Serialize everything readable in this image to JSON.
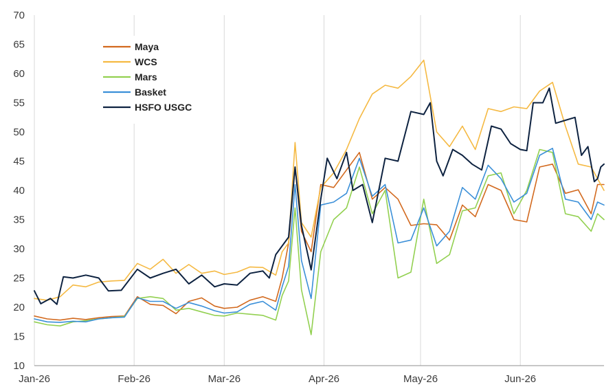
{
  "chart_data": {
    "type": "line",
    "ylim": [
      10,
      70
    ],
    "yticks": [
      10,
      15,
      20,
      25,
      30,
      35,
      40,
      45,
      50,
      55,
      60,
      65,
      70
    ],
    "xlim": [
      "2026-01-01",
      "2026-06-27"
    ],
    "xticks": [
      {
        "date": "2026-01-01",
        "label": "Jan-26"
      },
      {
        "date": "2026-02-01",
        "label": "Feb-26"
      },
      {
        "date": "2026-03-01",
        "label": "Mar-26"
      },
      {
        "date": "2026-04-01",
        "label": "Apr-26"
      },
      {
        "date": "2026-05-01",
        "label": "May-26"
      },
      {
        "date": "2026-06-01",
        "label": "Jun-26"
      }
    ],
    "grid": "vertical",
    "legend_position": "top-left",
    "series": [
      {
        "name": "Maya",
        "color": "#d2691e",
        "points": [
          [
            "2026-01-01",
            18.5
          ],
          [
            "2026-01-05",
            18.0
          ],
          [
            "2026-01-09",
            17.8
          ],
          [
            "2026-01-13",
            18.1
          ],
          [
            "2026-01-17",
            17.9
          ],
          [
            "2026-01-21",
            18.2
          ],
          [
            "2026-01-25",
            18.4
          ],
          [
            "2026-01-29",
            18.5
          ],
          [
            "2026-02-02",
            21.8
          ],
          [
            "2026-02-06",
            20.5
          ],
          [
            "2026-02-10",
            20.3
          ],
          [
            "2026-02-14",
            18.9
          ],
          [
            "2026-02-18",
            21.0
          ],
          [
            "2026-02-22",
            21.6
          ],
          [
            "2026-02-26",
            20.2
          ],
          [
            "2026-03-01",
            19.8
          ],
          [
            "2026-03-05",
            20.0
          ],
          [
            "2026-03-09",
            21.2
          ],
          [
            "2026-03-13",
            21.8
          ],
          [
            "2026-03-17",
            21.0
          ],
          [
            "2026-03-19",
            25.0
          ],
          [
            "2026-03-21",
            31.0
          ],
          [
            "2026-03-23",
            44.0
          ],
          [
            "2026-03-25",
            33.0
          ],
          [
            "2026-03-28",
            29.5
          ],
          [
            "2026-03-31",
            41.0
          ],
          [
            "2026-04-04",
            40.5
          ],
          [
            "2026-04-08",
            43.5
          ],
          [
            "2026-04-12",
            46.5
          ],
          [
            "2026-04-16",
            38.5
          ],
          [
            "2026-04-20",
            40.5
          ],
          [
            "2026-04-24",
            38.5
          ],
          [
            "2026-04-28",
            34.0
          ],
          [
            "2026-05-02",
            34.3
          ],
          [
            "2026-05-06",
            34.1
          ],
          [
            "2026-05-10",
            31.5
          ],
          [
            "2026-05-14",
            37.5
          ],
          [
            "2026-05-18",
            35.5
          ],
          [
            "2026-05-22",
            41.0
          ],
          [
            "2026-05-26",
            40.0
          ],
          [
            "2026-05-30",
            35.0
          ],
          [
            "2026-06-03",
            34.6
          ],
          [
            "2026-06-07",
            44.0
          ],
          [
            "2026-06-11",
            44.5
          ],
          [
            "2026-06-15",
            39.5
          ],
          [
            "2026-06-19",
            40.1
          ],
          [
            "2026-06-23",
            36.0
          ],
          [
            "2026-06-25",
            41.0
          ],
          [
            "2026-06-27",
            41.0
          ]
        ]
      },
      {
        "name": "WCS",
        "color": "#f5b942",
        "points": [
          [
            "2026-01-01",
            21.5
          ],
          [
            "2026-01-05",
            21.2
          ],
          [
            "2026-01-09",
            21.8
          ],
          [
            "2026-01-13",
            23.8
          ],
          [
            "2026-01-17",
            23.5
          ],
          [
            "2026-01-21",
            24.3
          ],
          [
            "2026-01-25",
            24.5
          ],
          [
            "2026-01-29",
            24.6
          ],
          [
            "2026-02-02",
            27.5
          ],
          [
            "2026-02-06",
            26.5
          ],
          [
            "2026-02-10",
            28.2
          ],
          [
            "2026-02-14",
            25.8
          ],
          [
            "2026-02-18",
            27.3
          ],
          [
            "2026-02-22",
            25.8
          ],
          [
            "2026-02-26",
            26.2
          ],
          [
            "2026-03-01",
            25.6
          ],
          [
            "2026-03-05",
            26.0
          ],
          [
            "2026-03-09",
            26.9
          ],
          [
            "2026-03-13",
            26.8
          ],
          [
            "2026-03-17",
            25.5
          ],
          [
            "2026-03-19",
            29.5
          ],
          [
            "2026-03-21",
            31.0
          ],
          [
            "2026-03-23",
            48.2
          ],
          [
            "2026-03-25",
            34.5
          ],
          [
            "2026-03-28",
            32.0
          ],
          [
            "2026-03-31",
            40.5
          ],
          [
            "2026-04-04",
            43.0
          ],
          [
            "2026-04-08",
            47.0
          ],
          [
            "2026-04-12",
            52.3
          ],
          [
            "2026-04-16",
            56.5
          ],
          [
            "2026-04-20",
            58.0
          ],
          [
            "2026-04-24",
            57.5
          ],
          [
            "2026-04-28",
            59.5
          ],
          [
            "2026-05-02",
            62.3
          ],
          [
            "2026-05-06",
            50.0
          ],
          [
            "2026-05-10",
            47.5
          ],
          [
            "2026-05-14",
            51.0
          ],
          [
            "2026-05-18",
            47.0
          ],
          [
            "2026-05-22",
            54.0
          ],
          [
            "2026-05-26",
            53.5
          ],
          [
            "2026-05-30",
            54.3
          ],
          [
            "2026-06-03",
            54.0
          ],
          [
            "2026-06-07",
            57.0
          ],
          [
            "2026-06-11",
            58.5
          ],
          [
            "2026-06-15",
            51.0
          ],
          [
            "2026-06-19",
            44.5
          ],
          [
            "2026-06-23",
            44.0
          ],
          [
            "2026-06-25",
            42.0
          ],
          [
            "2026-06-27",
            40.0
          ]
        ]
      },
      {
        "name": "Mars",
        "color": "#92d050",
        "points": [
          [
            "2026-01-01",
            17.5
          ],
          [
            "2026-01-05",
            17.0
          ],
          [
            "2026-01-09",
            16.8
          ],
          [
            "2026-01-13",
            17.5
          ],
          [
            "2026-01-17",
            17.7
          ],
          [
            "2026-01-21",
            18.0
          ],
          [
            "2026-01-25",
            18.2
          ],
          [
            "2026-01-29",
            18.4
          ],
          [
            "2026-02-02",
            21.5
          ],
          [
            "2026-02-06",
            21.8
          ],
          [
            "2026-02-10",
            21.5
          ],
          [
            "2026-02-14",
            19.5
          ],
          [
            "2026-02-18",
            19.8
          ],
          [
            "2026-02-22",
            19.2
          ],
          [
            "2026-02-26",
            18.6
          ],
          [
            "2026-03-01",
            18.5
          ],
          [
            "2026-03-05",
            19.0
          ],
          [
            "2026-03-09",
            18.8
          ],
          [
            "2026-03-13",
            18.6
          ],
          [
            "2026-03-17",
            17.8
          ],
          [
            "2026-03-19",
            22.0
          ],
          [
            "2026-03-21",
            24.5
          ],
          [
            "2026-03-23",
            37.0
          ],
          [
            "2026-03-25",
            23.0
          ],
          [
            "2026-03-28",
            15.3
          ],
          [
            "2026-03-31",
            29.5
          ],
          [
            "2026-04-04",
            35.0
          ],
          [
            "2026-04-08",
            37.0
          ],
          [
            "2026-04-12",
            44.0
          ],
          [
            "2026-04-16",
            36.0
          ],
          [
            "2026-04-20",
            40.0
          ],
          [
            "2026-04-24",
            25.0
          ],
          [
            "2026-04-28",
            26.0
          ],
          [
            "2026-05-02",
            38.5
          ],
          [
            "2026-05-06",
            27.5
          ],
          [
            "2026-05-10",
            29.0
          ],
          [
            "2026-05-14",
            36.5
          ],
          [
            "2026-05-18",
            37.0
          ],
          [
            "2026-05-22",
            42.5
          ],
          [
            "2026-05-26",
            43.0
          ],
          [
            "2026-05-30",
            36.0
          ],
          [
            "2026-06-03",
            40.0
          ],
          [
            "2026-06-07",
            47.0
          ],
          [
            "2026-06-11",
            46.5
          ],
          [
            "2026-06-15",
            36.0
          ],
          [
            "2026-06-19",
            35.5
          ],
          [
            "2026-06-23",
            33.0
          ],
          [
            "2026-06-25",
            36.0
          ],
          [
            "2026-06-27",
            35.0
          ]
        ]
      },
      {
        "name": "Basket",
        "color": "#3a8fd8",
        "points": [
          [
            "2026-01-01",
            18.0
          ],
          [
            "2026-01-05",
            17.5
          ],
          [
            "2026-01-09",
            17.4
          ],
          [
            "2026-01-13",
            17.6
          ],
          [
            "2026-01-17",
            17.5
          ],
          [
            "2026-01-21",
            18.0
          ],
          [
            "2026-01-25",
            18.2
          ],
          [
            "2026-01-29",
            18.3
          ],
          [
            "2026-02-02",
            21.6
          ],
          [
            "2026-02-06",
            21.0
          ],
          [
            "2026-02-10",
            21.0
          ],
          [
            "2026-02-14",
            19.8
          ],
          [
            "2026-02-18",
            20.8
          ],
          [
            "2026-02-22",
            20.2
          ],
          [
            "2026-02-26",
            19.4
          ],
          [
            "2026-03-01",
            19.0
          ],
          [
            "2026-03-05",
            19.2
          ],
          [
            "2026-03-09",
            20.5
          ],
          [
            "2026-03-13",
            21.0
          ],
          [
            "2026-03-17",
            19.5
          ],
          [
            "2026-03-19",
            23.5
          ],
          [
            "2026-03-21",
            27.0
          ],
          [
            "2026-03-23",
            41.0
          ],
          [
            "2026-03-25",
            28.0
          ],
          [
            "2026-03-28",
            21.5
          ],
          [
            "2026-03-31",
            37.5
          ],
          [
            "2026-04-04",
            38.0
          ],
          [
            "2026-04-08",
            39.5
          ],
          [
            "2026-04-12",
            45.5
          ],
          [
            "2026-04-16",
            39.0
          ],
          [
            "2026-04-20",
            41.0
          ],
          [
            "2026-04-24",
            31.0
          ],
          [
            "2026-04-28",
            31.5
          ],
          [
            "2026-05-02",
            37.0
          ],
          [
            "2026-05-06",
            30.5
          ],
          [
            "2026-05-10",
            33.0
          ],
          [
            "2026-05-14",
            40.5
          ],
          [
            "2026-05-18",
            38.5
          ],
          [
            "2026-05-22",
            44.3
          ],
          [
            "2026-05-26",
            42.0
          ],
          [
            "2026-05-30",
            38.0
          ],
          [
            "2026-06-03",
            39.5
          ],
          [
            "2026-06-07",
            46.0
          ],
          [
            "2026-06-11",
            47.2
          ],
          [
            "2026-06-15",
            38.5
          ],
          [
            "2026-06-19",
            38.0
          ],
          [
            "2026-06-23",
            35.0
          ],
          [
            "2026-06-25",
            38.0
          ],
          [
            "2026-06-27",
            37.5
          ]
        ]
      },
      {
        "name": "HSFO USGC",
        "color": "#0d2240",
        "points": [
          [
            "2026-01-01",
            22.8
          ],
          [
            "2026-01-03",
            20.6
          ],
          [
            "2026-01-06",
            21.5
          ],
          [
            "2026-01-08",
            20.5
          ],
          [
            "2026-01-10",
            25.2
          ],
          [
            "2026-01-13",
            25.0
          ],
          [
            "2026-01-17",
            25.5
          ],
          [
            "2026-01-21",
            25.0
          ],
          [
            "2026-01-24",
            22.8
          ],
          [
            "2026-01-28",
            22.9
          ],
          [
            "2026-02-02",
            26.5
          ],
          [
            "2026-02-06",
            25.0
          ],
          [
            "2026-02-10",
            25.8
          ],
          [
            "2026-02-14",
            26.5
          ],
          [
            "2026-02-18",
            24.0
          ],
          [
            "2026-02-22",
            25.5
          ],
          [
            "2026-02-26",
            23.5
          ],
          [
            "2026-03-01",
            24.0
          ],
          [
            "2026-03-05",
            23.8
          ],
          [
            "2026-03-09",
            25.8
          ],
          [
            "2026-03-13",
            26.2
          ],
          [
            "2026-03-15",
            25.0
          ],
          [
            "2026-03-17",
            29.0
          ],
          [
            "2026-03-21",
            32.0
          ],
          [
            "2026-03-23",
            44.0
          ],
          [
            "2026-03-25",
            34.0
          ],
          [
            "2026-03-28",
            26.4
          ],
          [
            "2026-03-31",
            38.5
          ],
          [
            "2026-04-02",
            45.5
          ],
          [
            "2026-04-05",
            42.0
          ],
          [
            "2026-04-08",
            46.5
          ],
          [
            "2026-04-10",
            40.0
          ],
          [
            "2026-04-13",
            41.0
          ],
          [
            "2026-04-16",
            34.5
          ],
          [
            "2026-04-20",
            45.5
          ],
          [
            "2026-04-24",
            45.0
          ],
          [
            "2026-04-28",
            53.5
          ],
          [
            "2026-05-02",
            53.0
          ],
          [
            "2026-05-04",
            55.0
          ],
          [
            "2026-05-06",
            45.0
          ],
          [
            "2026-05-08",
            42.5
          ],
          [
            "2026-05-11",
            47.0
          ],
          [
            "2026-05-14",
            46.0
          ],
          [
            "2026-05-17",
            44.5
          ],
          [
            "2026-05-20",
            43.5
          ],
          [
            "2026-05-23",
            51.0
          ],
          [
            "2026-05-26",
            50.5
          ],
          [
            "2026-05-29",
            48.0
          ],
          [
            "2026-06-01",
            47.0
          ],
          [
            "2026-06-03",
            46.8
          ],
          [
            "2026-06-05",
            55.0
          ],
          [
            "2026-06-08",
            55.0
          ],
          [
            "2026-06-10",
            57.5
          ],
          [
            "2026-06-12",
            51.5
          ],
          [
            "2026-06-15",
            52.0
          ],
          [
            "2026-06-18",
            52.5
          ],
          [
            "2026-06-20",
            46.0
          ],
          [
            "2026-06-22",
            47.5
          ],
          [
            "2026-06-24",
            41.5
          ],
          [
            "2026-06-25",
            42.0
          ],
          [
            "2026-06-26",
            44.0
          ],
          [
            "2026-06-27",
            44.5
          ]
        ]
      }
    ]
  }
}
